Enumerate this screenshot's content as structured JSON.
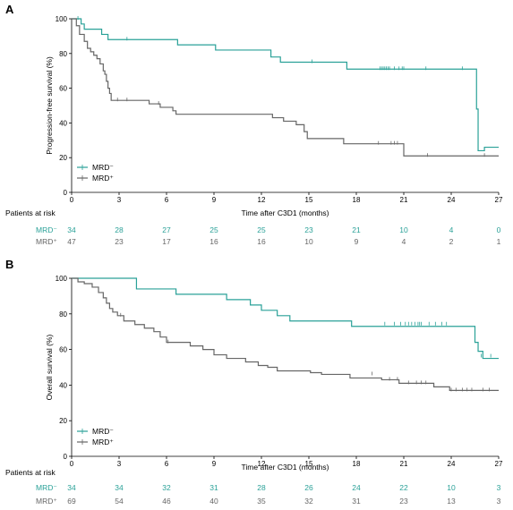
{
  "colors": {
    "mrd_neg": "#2aa198",
    "mrd_pos": "#666666",
    "axis": "#000000"
  },
  "chart_data": [
    {
      "type": "line",
      "panel_label": "A",
      "ylabel": "Progression-free survival (%)",
      "xlabel": "Time after C3D1 (months)",
      "xlim": [
        0,
        27
      ],
      "ylim": [
        0,
        100
      ],
      "xticks": [
        0,
        3,
        6,
        9,
        12,
        15,
        18,
        21,
        24,
        27
      ],
      "yticks": [
        0,
        20,
        40,
        60,
        80,
        100
      ],
      "legend": {
        "position": "bottom-left",
        "entries": [
          "MRD⁻",
          "MRD⁺"
        ]
      },
      "risk_table": {
        "title": "Patients at risk",
        "rows": [
          {
            "label": "MRD⁻",
            "values": [
              34,
              28,
              27,
              25,
              25,
              23,
              21,
              10,
              4,
              0
            ]
          },
          {
            "label": "MRD⁺",
            "values": [
              47,
              23,
              17,
              16,
              16,
              10,
              9,
              4,
              2,
              1
            ]
          }
        ]
      },
      "series": [
        {
          "name": "MRD⁻",
          "steps": [
            [
              0,
              100
            ],
            [
              0.6,
              97
            ],
            [
              0.8,
              94
            ],
            [
              1.9,
              91
            ],
            [
              2.3,
              88
            ],
            [
              6.7,
              85
            ],
            [
              9.1,
              82
            ],
            [
              12.6,
              78
            ],
            [
              13.2,
              75
            ],
            [
              17.4,
              71
            ],
            [
              25.6,
              48
            ],
            [
              25.7,
              24
            ],
            [
              26.1,
              26
            ]
          ],
          "censors": [
            [
              0.4,
              100
            ],
            [
              3.5,
              88
            ],
            [
              15.2,
              75
            ],
            [
              19.5,
              71
            ],
            [
              19.6,
              71
            ],
            [
              19.7,
              71
            ],
            [
              19.8,
              71
            ],
            [
              19.9,
              71
            ],
            [
              20.0,
              71
            ],
            [
              20.1,
              71
            ],
            [
              20.4,
              71
            ],
            [
              20.7,
              71
            ],
            [
              20.9,
              71
            ],
            [
              21.0,
              71
            ],
            [
              22.4,
              71
            ],
            [
              24.7,
              71
            ]
          ]
        },
        {
          "name": "MRD⁺",
          "steps": [
            [
              0,
              100
            ],
            [
              0.3,
              96
            ],
            [
              0.5,
              91
            ],
            [
              0.8,
              87
            ],
            [
              1.0,
              83
            ],
            [
              1.2,
              81
            ],
            [
              1.4,
              79
            ],
            [
              1.6,
              77
            ],
            [
              1.8,
              74
            ],
            [
              2.0,
              70
            ],
            [
              2.1,
              68
            ],
            [
              2.2,
              64
            ],
            [
              2.3,
              60
            ],
            [
              2.4,
              57
            ],
            [
              2.5,
              53
            ],
            [
              4.9,
              51
            ],
            [
              5.6,
              49
            ],
            [
              6.4,
              47
            ],
            [
              6.6,
              45
            ],
            [
              12.7,
              43
            ],
            [
              13.4,
              41
            ],
            [
              14.2,
              39
            ],
            [
              14.7,
              35
            ],
            [
              14.9,
              31
            ],
            [
              17.2,
              28
            ],
            [
              21.0,
              21
            ]
          ],
          "censors": [
            [
              2.9,
              53
            ],
            [
              3.5,
              53
            ],
            [
              5.5,
              51
            ],
            [
              19.4,
              28
            ],
            [
              20.2,
              28
            ],
            [
              20.4,
              28
            ],
            [
              20.6,
              28
            ],
            [
              22.5,
              21
            ],
            [
              26.1,
              21
            ]
          ]
        }
      ]
    },
    {
      "type": "line",
      "panel_label": "B",
      "ylabel": "Overall survival  (%)",
      "xlabel": "Time after C3D1 (months)",
      "xlim": [
        0,
        27
      ],
      "ylim": [
        0,
        100
      ],
      "xticks": [
        0,
        3,
        6,
        9,
        12,
        15,
        18,
        21,
        24,
        27
      ],
      "yticks": [
        0,
        20,
        40,
        60,
        80,
        100
      ],
      "legend": {
        "position": "bottom-left",
        "entries": [
          "MRD⁻",
          "MRD⁺"
        ]
      },
      "risk_table": {
        "title": "Patients at risk",
        "rows": [
          {
            "label": "MRD⁻",
            "values": [
              34,
              34,
              32,
              31,
              28,
              26,
              24,
              22,
              10,
              3
            ]
          },
          {
            "label": "MRD⁺",
            "values": [
              69,
              54,
              46,
              40,
              35,
              32,
              31,
              23,
              13,
              3
            ]
          }
        ]
      },
      "series": [
        {
          "name": "MRD⁻",
          "steps": [
            [
              0,
              100
            ],
            [
              4.1,
              94
            ],
            [
              6.6,
              91
            ],
            [
              9.8,
              88
            ],
            [
              11.3,
              85
            ],
            [
              12.0,
              82
            ],
            [
              13.0,
              79
            ],
            [
              13.8,
              76
            ],
            [
              17.7,
              73
            ],
            [
              25.5,
              64
            ],
            [
              25.7,
              59
            ],
            [
              26.0,
              55
            ]
          ],
          "censors": [
            [
              19.8,
              74
            ],
            [
              20.4,
              74
            ],
            [
              20.8,
              74
            ],
            [
              21.1,
              74
            ],
            [
              21.3,
              74
            ],
            [
              21.5,
              74
            ],
            [
              21.7,
              74
            ],
            [
              21.9,
              74
            ],
            [
              22.0,
              74
            ],
            [
              22.1,
              74
            ],
            [
              22.6,
              74
            ],
            [
              23.0,
              74
            ],
            [
              23.4,
              74
            ],
            [
              23.7,
              74
            ],
            [
              25.9,
              56
            ],
            [
              26.5,
              56
            ]
          ]
        },
        {
          "name": "MRD⁺",
          "steps": [
            [
              0,
              100
            ],
            [
              0.4,
              98
            ],
            [
              0.8,
              97
            ],
            [
              1.3,
              95
            ],
            [
              1.7,
              92
            ],
            [
              2.0,
              89
            ],
            [
              2.2,
              86
            ],
            [
              2.4,
              83
            ],
            [
              2.6,
              81
            ],
            [
              2.9,
              79
            ],
            [
              3.3,
              76
            ],
            [
              4.0,
              74
            ],
            [
              4.6,
              72
            ],
            [
              5.2,
              70
            ],
            [
              5.6,
              67
            ],
            [
              6.0,
              64
            ],
            [
              7.5,
              62
            ],
            [
              8.3,
              60
            ],
            [
              9.0,
              57
            ],
            [
              9.8,
              55
            ],
            [
              11.0,
              53
            ],
            [
              11.8,
              51
            ],
            [
              12.4,
              50
            ],
            [
              13.0,
              48
            ],
            [
              15.1,
              47
            ],
            [
              15.8,
              46
            ],
            [
              17.6,
              44
            ],
            [
              19.6,
              43
            ],
            [
              20.7,
              41
            ],
            [
              22.9,
              39
            ],
            [
              23.9,
              37
            ]
          ],
          "censors": [
            [
              3.1,
              79
            ],
            [
              6.1,
              64
            ],
            [
              19.0,
              46
            ],
            [
              20.1,
              43
            ],
            [
              20.6,
              43
            ],
            [
              21.3,
              41
            ],
            [
              21.8,
              41
            ],
            [
              22.1,
              41
            ],
            [
              22.4,
              41
            ],
            [
              24.0,
              37
            ],
            [
              24.3,
              37
            ],
            [
              24.7,
              37
            ],
            [
              25.0,
              37
            ],
            [
              25.3,
              37
            ],
            [
              26.0,
              37
            ],
            [
              26.4,
              37
            ]
          ]
        }
      ]
    }
  ]
}
